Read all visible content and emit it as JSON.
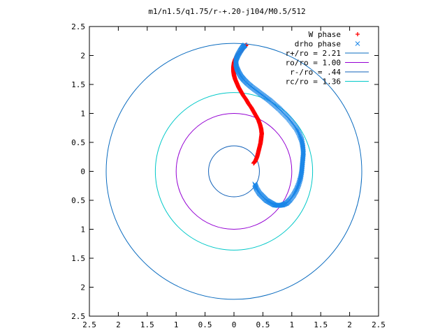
{
  "chart_data": {
    "type": "scatter",
    "title": "m1/n1.5/q1.75/r-+.20-j104/M0.5/512",
    "xlabel": "",
    "ylabel": "",
    "xlim": [
      -2.5,
      2.5
    ],
    "ylim": [
      -2.5,
      2.5
    ],
    "x_ticks": [
      "2.5",
      "2",
      "1.5",
      "1",
      "0.5",
      "0",
      "0.5",
      "1",
      "1.5",
      "2",
      "2.5"
    ],
    "y_ticks": [
      "2.5",
      "2",
      "1.5",
      "1",
      "0.5",
      "0",
      "0.5",
      "1",
      "1.5",
      "2",
      "2.5"
    ],
    "x_tick_values": [
      -2.5,
      -2,
      -1.5,
      -1,
      -0.5,
      0,
      0.5,
      1,
      1.5,
      2,
      2.5
    ],
    "y_tick_values": [
      2.5,
      2,
      1.5,
      1,
      0.5,
      0,
      -0.5,
      -1,
      -1.5,
      -2,
      -2.5
    ],
    "grid": false,
    "legend_position": "top-right",
    "circles": [
      {
        "name": "r+/ro = 2.21",
        "radius": 2.21,
        "color": "#0a6bbf"
      },
      {
        "name": "ro/ro = 1.00",
        "radius": 1.0,
        "color": "#9400d3"
      },
      {
        "name": "r-/ro = .44",
        "radius": 0.44,
        "color": "#1060b8"
      },
      {
        "name": "rc/ro = 1.36",
        "radius": 1.36,
        "color": "#00c8c8"
      }
    ],
    "series": [
      {
        "name": "W phase",
        "marker": "+",
        "color": "#ff0000",
        "points": [
          [
            0.21,
            2.18
          ],
          [
            0.17,
            2.14
          ],
          [
            0.13,
            2.09
          ],
          [
            0.09,
            2.04
          ],
          [
            0.05,
            1.99
          ],
          [
            0.02,
            1.93
          ],
          [
            0.0,
            1.87
          ],
          [
            -0.01,
            1.8
          ],
          [
            -0.01,
            1.73
          ],
          [
            0.0,
            1.66
          ],
          [
            0.02,
            1.59
          ],
          [
            0.05,
            1.52
          ],
          [
            0.08,
            1.45
          ],
          [
            0.12,
            1.38
          ],
          [
            0.16,
            1.31
          ],
          [
            0.21,
            1.24
          ],
          [
            0.25,
            1.17
          ],
          [
            0.3,
            1.1
          ],
          [
            0.34,
            1.03
          ],
          [
            0.38,
            0.96
          ],
          [
            0.42,
            0.89
          ],
          [
            0.45,
            0.81
          ],
          [
            0.47,
            0.73
          ],
          [
            0.48,
            0.65
          ],
          [
            0.47,
            0.57
          ],
          [
            0.46,
            0.49
          ],
          [
            0.44,
            0.41
          ],
          [
            0.42,
            0.33
          ],
          [
            0.4,
            0.25
          ],
          [
            0.37,
            0.18
          ],
          [
            0.34,
            0.14
          ]
        ]
      },
      {
        "name": "drho phase",
        "marker": "x",
        "color": "#1a86e8",
        "points": [
          [
            0.19,
            2.18
          ],
          [
            0.15,
            2.14
          ],
          [
            0.11,
            2.08
          ],
          [
            0.07,
            2.01
          ],
          [
            0.04,
            1.94
          ],
          [
            0.03,
            1.86
          ],
          [
            0.05,
            1.78
          ],
          [
            0.08,
            1.71
          ],
          [
            0.12,
            1.64
          ],
          [
            0.17,
            1.58
          ],
          [
            0.23,
            1.52
          ],
          [
            0.3,
            1.46
          ],
          [
            0.38,
            1.4
          ],
          [
            0.46,
            1.34
          ],
          [
            0.54,
            1.28
          ],
          [
            0.62,
            1.22
          ],
          [
            0.7,
            1.15
          ],
          [
            0.78,
            1.08
          ],
          [
            0.86,
            1.0
          ],
          [
            0.94,
            0.92
          ],
          [
            1.01,
            0.83
          ],
          [
            1.08,
            0.74
          ],
          [
            1.13,
            0.64
          ],
          [
            1.17,
            0.54
          ],
          [
            1.19,
            0.43
          ],
          [
            1.2,
            0.32
          ],
          [
            1.19,
            0.21
          ],
          [
            1.18,
            0.1
          ],
          [
            1.17,
            -0.01
          ],
          [
            1.15,
            -0.12
          ],
          [
            1.12,
            -0.22
          ],
          [
            1.08,
            -0.32
          ],
          [
            1.03,
            -0.41
          ],
          [
            0.97,
            -0.49
          ],
          [
            0.91,
            -0.55
          ],
          [
            0.84,
            -0.58
          ],
          [
            0.77,
            -0.59
          ],
          [
            0.7,
            -0.58
          ],
          [
            0.63,
            -0.54
          ],
          [
            0.56,
            -0.5
          ],
          [
            0.5,
            -0.44
          ],
          [
            0.44,
            -0.38
          ],
          [
            0.39,
            -0.3
          ],
          [
            0.36,
            -0.22
          ]
        ]
      }
    ]
  }
}
